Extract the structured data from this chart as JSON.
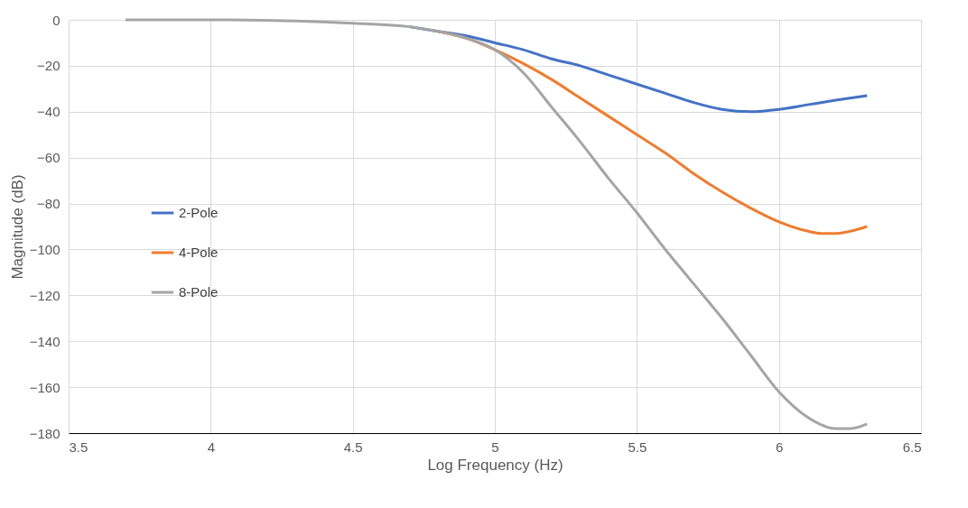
{
  "chart_data": {
    "type": "line",
    "xlabel": "Log Frequency (Hz)",
    "ylabel": "Magnitude (dB)",
    "xlim": [
      3.5,
      6.5
    ],
    "xticks": [
      3.5,
      4,
      4.5,
      5,
      5.5,
      6,
      6.5
    ],
    "ylim": [
      -180,
      0
    ],
    "yticks": [
      -180,
      -160,
      -140,
      -120,
      -100,
      -80,
      -60,
      -40,
      -20,
      0
    ],
    "grid": true,
    "legend": "left",
    "marker": "none",
    "line_style": "solid",
    "series": [
      {
        "name": "2-Pole",
        "color": "#4472c4",
        "x": [
          4.7,
          4.8,
          4.9,
          5.0,
          5.1,
          5.2,
          5.3,
          5.4,
          5.5,
          5.6,
          5.7,
          5.8,
          5.9,
          6.0,
          6.1,
          6.2,
          6.31
        ],
        "values": [
          -3,
          -5,
          -7,
          -10,
          -13,
          -17,
          -20,
          -24,
          -28,
          -32,
          -36,
          -39,
          -40,
          -39,
          -37,
          -35,
          -33
        ]
      },
      {
        "name": "4-Pole",
        "color": "#ed7d31",
        "x": [
          4.8,
          4.9,
          5.0,
          5.1,
          5.2,
          5.3,
          5.4,
          5.5,
          5.6,
          5.7,
          5.8,
          5.9,
          6.0,
          6.1,
          6.15,
          6.2,
          6.31
        ],
        "values": [
          -5,
          -8,
          -13,
          -19,
          -26,
          -34,
          -42,
          -50,
          -58,
          -67,
          -75,
          -82,
          -88,
          -92,
          -93,
          -93,
          -90
        ]
      },
      {
        "name": "8-Pole",
        "color": "#a5a5a5",
        "x": [
          3.7,
          4.0,
          4.3,
          4.5,
          4.7,
          4.8,
          4.9,
          5.0,
          5.1,
          5.2,
          5.3,
          5.4,
          5.5,
          5.6,
          5.7,
          5.8,
          5.9,
          6.0,
          6.1,
          6.2,
          6.25,
          6.31
        ],
        "values": [
          0,
          0,
          -0.5,
          -1.5,
          -3,
          -5,
          -8,
          -13,
          -23,
          -38,
          -53,
          -69,
          -84,
          -100,
          -115,
          -130,
          -146,
          -162,
          -173,
          -178,
          -178,
          -176
        ]
      }
    ]
  }
}
